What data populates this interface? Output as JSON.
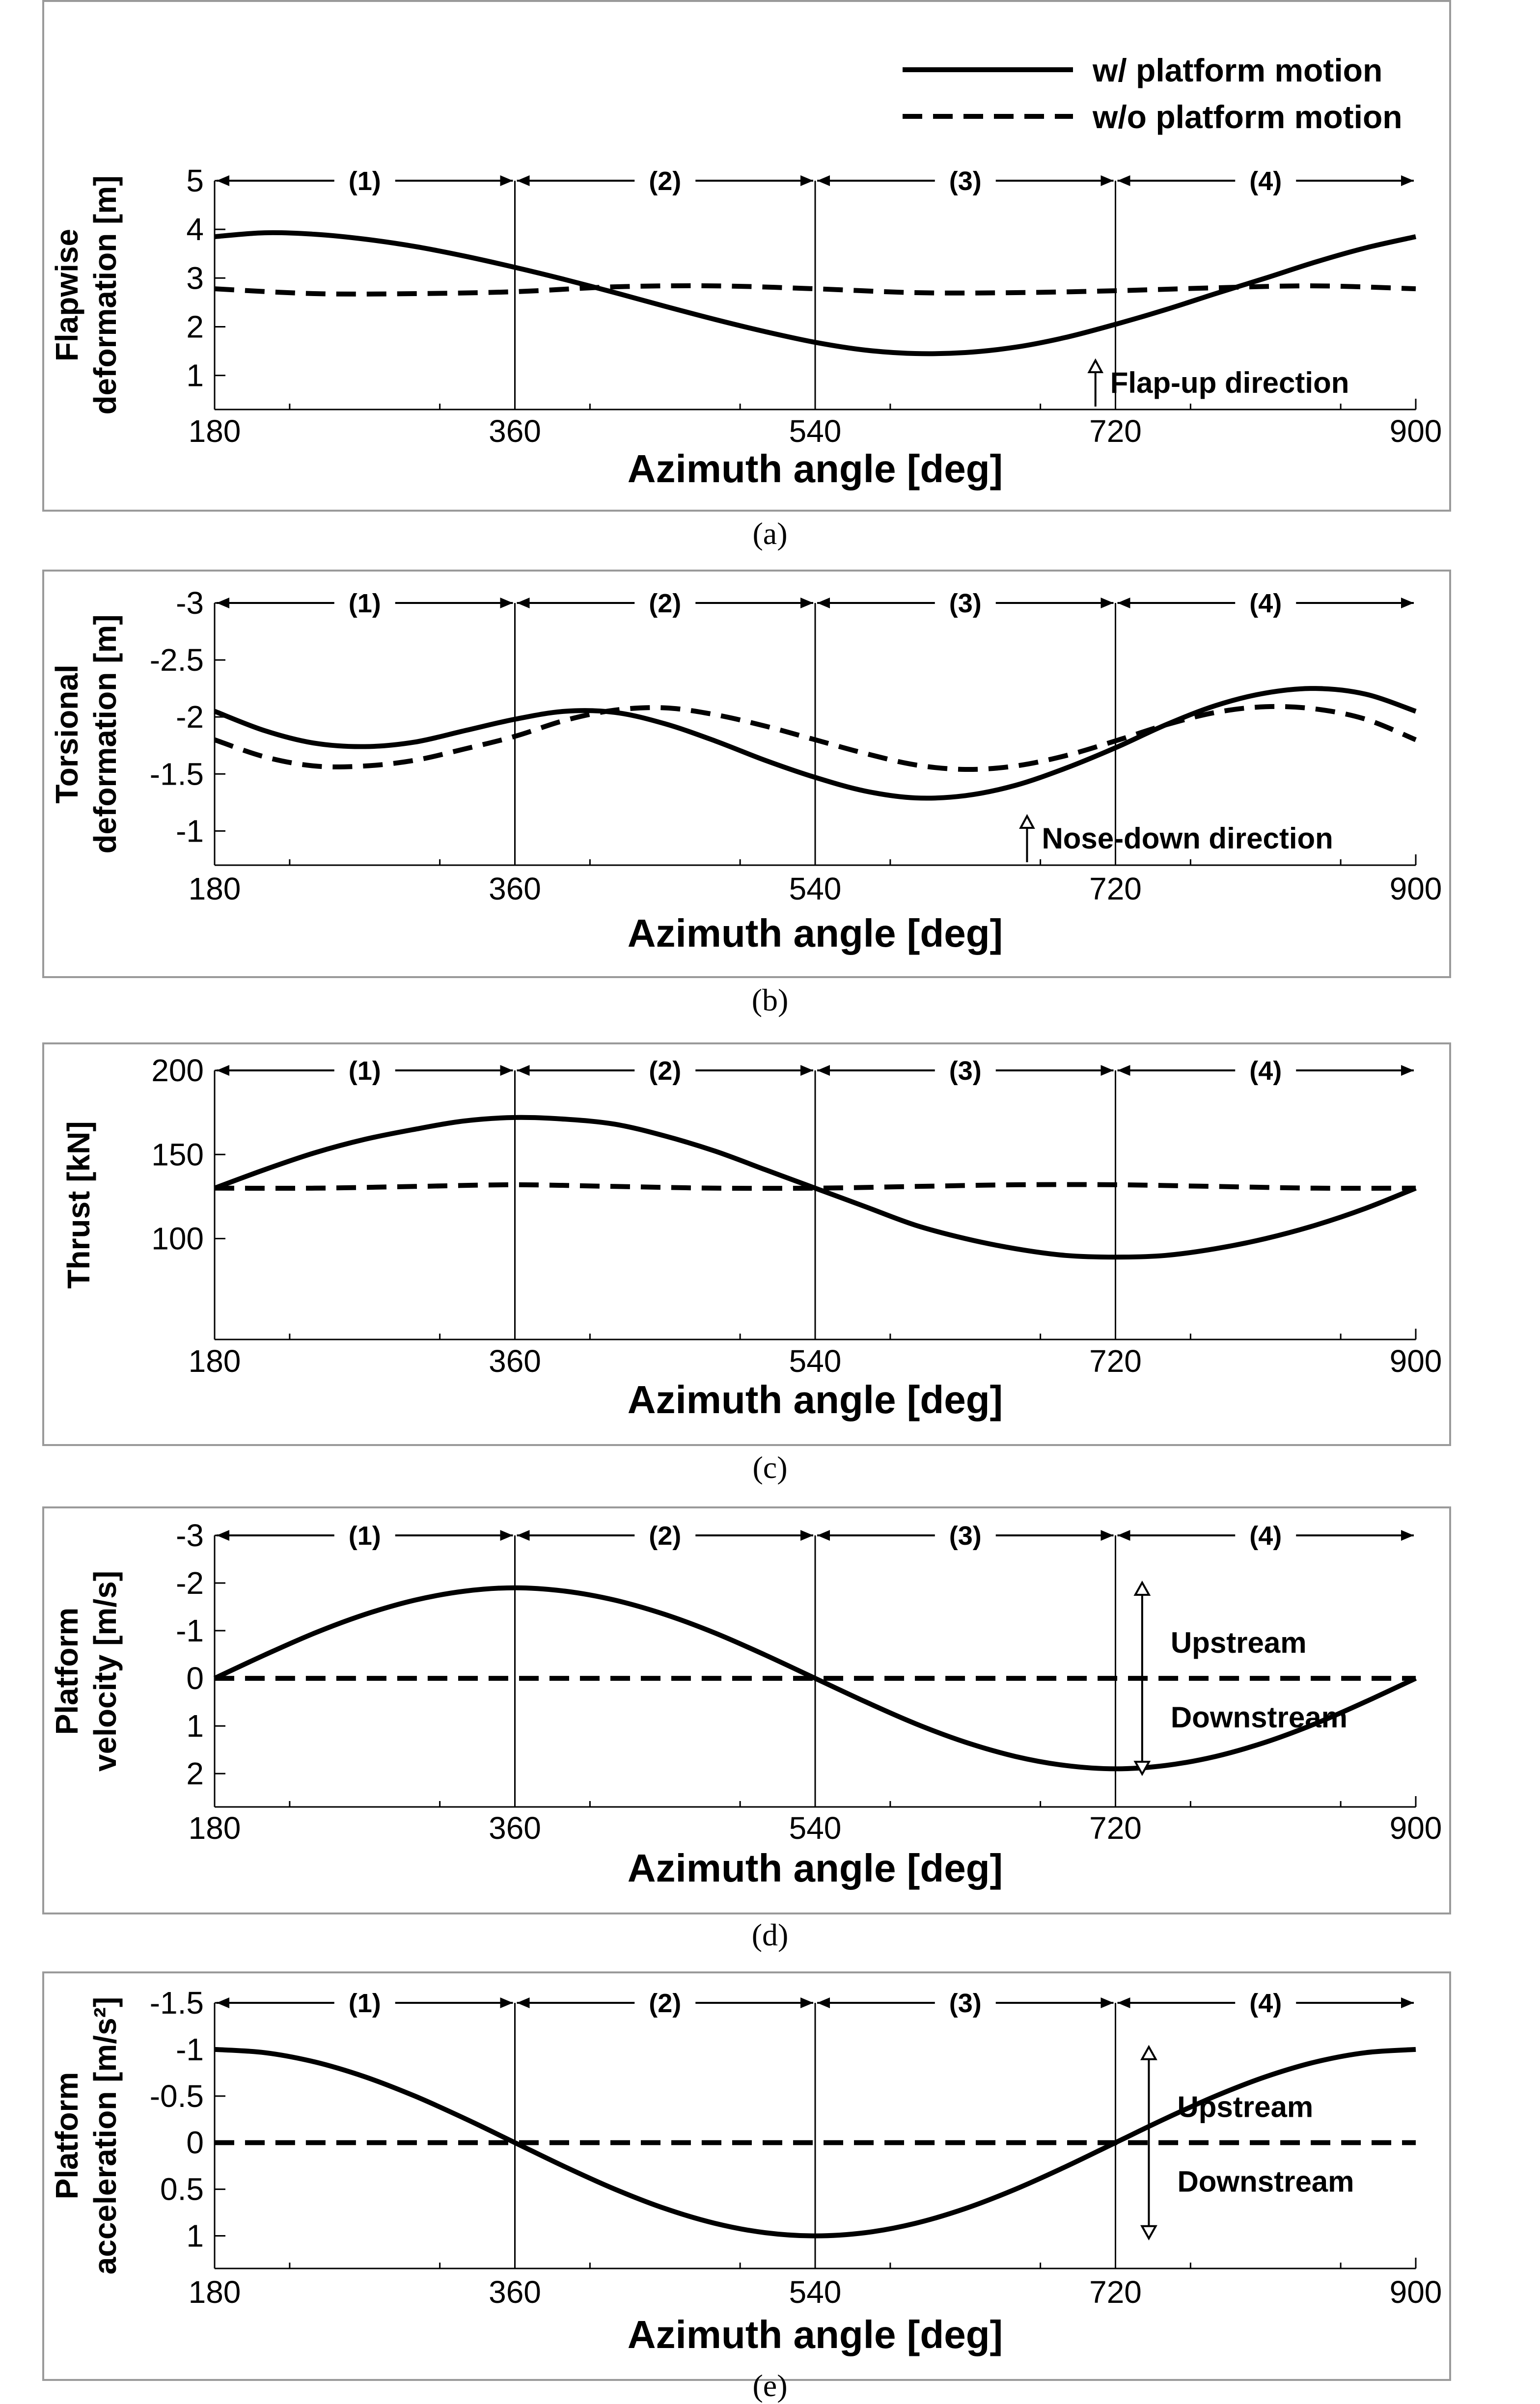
{
  "legend": {
    "solid_label": "w/   platform motion",
    "dashed_label": "w/o platform motion"
  },
  "chart_data": [
    {
      "panel": "a",
      "type": "line",
      "caption": "(a)",
      "xlabel": "Azimuth angle [deg]",
      "ylabel_lines": [
        "Flapwise",
        "deformation [m]"
      ],
      "xlim": [
        180,
        900
      ],
      "xticks": [
        180,
        360,
        540,
        720,
        900
      ],
      "ylim": [
        0.3,
        5
      ],
      "yticks": [
        1,
        2,
        3,
        4,
        5
      ],
      "yticklabels": [
        "1",
        "2",
        "3",
        "4",
        "5"
      ],
      "inverted": false,
      "regions": [
        "(1)",
        "(2)",
        "(3)",
        "(4)"
      ],
      "annotation": {
        "text": "Flap-up direction",
        "x": 708,
        "kind": "up"
      },
      "series": [
        {
          "name": "w/ platform motion",
          "style": "solid",
          "x": [
            180,
            210,
            240,
            270,
            300,
            330,
            360,
            390,
            420,
            450,
            480,
            510,
            540,
            570,
            600,
            630,
            660,
            690,
            720,
            750,
            780,
            810,
            840,
            870,
            900
          ],
          "y": [
            3.85,
            3.93,
            3.9,
            3.8,
            3.65,
            3.45,
            3.22,
            2.97,
            2.7,
            2.42,
            2.15,
            1.9,
            1.68,
            1.52,
            1.45,
            1.47,
            1.58,
            1.78,
            2.05,
            2.35,
            2.68,
            3.0,
            3.33,
            3.62,
            3.85
          ]
        },
        {
          "name": "w/o platform motion",
          "style": "dashed",
          "x": [
            180,
            240,
            300,
            360,
            420,
            480,
            540,
            600,
            660,
            720,
            780,
            840,
            900
          ],
          "y": [
            2.78,
            2.68,
            2.68,
            2.72,
            2.82,
            2.84,
            2.78,
            2.7,
            2.7,
            2.74,
            2.8,
            2.84,
            2.78
          ]
        }
      ]
    },
    {
      "panel": "b",
      "type": "line",
      "caption": "(b)",
      "xlabel": "Azimuth angle [deg]",
      "ylabel_lines": [
        "Torsional",
        "deformation [m]"
      ],
      "xlim": [
        180,
        900
      ],
      "xticks": [
        180,
        360,
        540,
        720,
        900
      ],
      "ylim": [
        -3,
        -0.7
      ],
      "yticks": [
        -3,
        -2.5,
        -2,
        -1.5,
        -1
      ],
      "yticklabels": [
        "-3",
        "-2.5",
        "-2",
        "-1.5",
        "-1"
      ],
      "inverted": true,
      "regions": [
        "(1)",
        "(2)",
        "(3)",
        "(4)"
      ],
      "annotation": {
        "text": "Nose-down direction",
        "x": 667,
        "kind": "up"
      },
      "series": [
        {
          "name": "w/ platform motion",
          "style": "solid",
          "x": [
            180,
            210,
            240,
            270,
            300,
            330,
            360,
            390,
            420,
            450,
            480,
            510,
            540,
            570,
            600,
            630,
            660,
            690,
            720,
            750,
            780,
            810,
            840,
            870,
            900
          ],
          "y": [
            -2.05,
            -1.88,
            -1.77,
            -1.74,
            -1.78,
            -1.88,
            -1.98,
            -2.05,
            -2.04,
            -1.94,
            -1.79,
            -1.62,
            -1.47,
            -1.35,
            -1.29,
            -1.31,
            -1.4,
            -1.55,
            -1.73,
            -1.93,
            -2.1,
            -2.21,
            -2.25,
            -2.2,
            -2.05
          ]
        },
        {
          "name": "w/o platform motion",
          "style": "dashed",
          "x": [
            180,
            210,
            240,
            270,
            300,
            330,
            360,
            390,
            420,
            450,
            480,
            510,
            540,
            570,
            600,
            630,
            660,
            690,
            720,
            750,
            780,
            810,
            840,
            870,
            900
          ],
          "y": [
            -1.8,
            -1.65,
            -1.57,
            -1.57,
            -1.62,
            -1.72,
            -1.83,
            -1.97,
            -2.06,
            -2.08,
            -2.02,
            -1.92,
            -1.8,
            -1.68,
            -1.58,
            -1.54,
            -1.57,
            -1.66,
            -1.79,
            -1.93,
            -2.04,
            -2.09,
            -2.07,
            -1.98,
            -1.8
          ]
        }
      ]
    },
    {
      "panel": "c",
      "type": "line",
      "caption": "(c)",
      "xlabel": "Azimuth angle [deg]",
      "ylabel_lines": [
        "Thrust [kN]"
      ],
      "xlim": [
        180,
        900
      ],
      "xticks": [
        180,
        360,
        540,
        720,
        900
      ],
      "ylim": [
        40,
        200
      ],
      "yticks": [
        100,
        150,
        200
      ],
      "yticklabels": [
        "100",
        "150",
        "200"
      ],
      "inverted": false,
      "regions": [
        "(1)",
        "(2)",
        "(3)",
        "(4)"
      ],
      "series": [
        {
          "name": "w/ platform motion",
          "style": "solid",
          "x": [
            180,
            210,
            240,
            270,
            300,
            330,
            360,
            390,
            420,
            450,
            480,
            510,
            540,
            570,
            600,
            630,
            660,
            690,
            720,
            750,
            780,
            810,
            840,
            870,
            900
          ],
          "y": [
            130,
            141,
            151,
            159,
            165,
            170,
            172,
            171,
            168,
            161,
            152,
            141,
            130,
            119,
            108,
            100,
            94,
            90,
            89,
            90,
            94,
            100,
            108,
            118,
            130
          ]
        },
        {
          "name": "w/o platform motion",
          "style": "dashed",
          "x": [
            180,
            240,
            300,
            360,
            420,
            480,
            540,
            600,
            660,
            720,
            780,
            840,
            900
          ],
          "y": [
            130,
            130,
            131,
            132,
            131,
            130,
            130,
            131,
            132,
            132,
            131,
            130,
            130
          ]
        }
      ]
    },
    {
      "panel": "d",
      "type": "line",
      "caption": "(d)",
      "xlabel": "Azimuth angle [deg]",
      "ylabel_lines": [
        "Platform",
        "velocity [m/s]"
      ],
      "xlim": [
        180,
        900
      ],
      "xticks": [
        180,
        360,
        540,
        720,
        900
      ],
      "ylim": [
        -3,
        2.7
      ],
      "yticks": [
        -3,
        -2,
        -1,
        0,
        1,
        2
      ],
      "yticklabels": [
        "-3",
        "-2",
        "-1",
        "0",
        "1",
        "2"
      ],
      "inverted": true,
      "regions": [
        "(1)",
        "(2)",
        "(3)",
        "(4)"
      ],
      "annotation": {
        "up_text": "Upstream",
        "down_text": "Downstream",
        "x": 736,
        "kind": "updown"
      },
      "series": [
        {
          "name": "w/ platform motion",
          "style": "solid",
          "x": [
            180,
            210,
            240,
            270,
            300,
            330,
            360,
            390,
            420,
            450,
            480,
            510,
            540,
            570,
            600,
            630,
            660,
            690,
            720,
            750,
            780,
            810,
            840,
            870,
            900
          ],
          "y": [
            0,
            -0.49,
            -0.95,
            -1.34,
            -1.64,
            -1.83,
            -1.9,
            -1.83,
            -1.64,
            -1.34,
            -0.95,
            -0.49,
            0,
            0.49,
            0.95,
            1.34,
            1.64,
            1.83,
            1.9,
            1.83,
            1.64,
            1.34,
            0.95,
            0.49,
            0
          ]
        },
        {
          "name": "w/o platform motion",
          "style": "dashed",
          "x": [
            180,
            900
          ],
          "y": [
            0,
            0
          ]
        }
      ]
    },
    {
      "panel": "e",
      "type": "line",
      "caption": "(e)",
      "xlabel": "Azimuth angle [deg]",
      "ylabel_lines": [
        "Platform",
        "acceleration [m/s²]"
      ],
      "xlim": [
        180,
        900
      ],
      "xticks": [
        180,
        360,
        540,
        720,
        900
      ],
      "ylim": [
        -1.5,
        1.35
      ],
      "yticks": [
        -1.5,
        -1,
        -0.5,
        0,
        0.5,
        1
      ],
      "yticklabels": [
        "-1.5",
        "-1",
        "-0.5",
        "0",
        "0.5",
        "1"
      ],
      "inverted": true,
      "regions": [
        "(1)",
        "(2)",
        "(3)",
        "(4)"
      ],
      "annotation": {
        "up_text": "Upstream",
        "down_text": "Downstream",
        "x": 740,
        "kind": "updown"
      },
      "series": [
        {
          "name": "w/ platform motion",
          "style": "solid",
          "x": [
            180,
            210,
            240,
            270,
            300,
            330,
            360,
            390,
            420,
            450,
            480,
            510,
            540,
            570,
            600,
            630,
            660,
            690,
            720,
            750,
            780,
            810,
            840,
            870,
            900
          ],
          "y": [
            -1.0,
            -0.966,
            -0.866,
            -0.707,
            -0.5,
            -0.259,
            0,
            0.259,
            0.5,
            0.707,
            0.866,
            0.966,
            1.0,
            0.966,
            0.866,
            0.707,
            0.5,
            0.259,
            0,
            -0.259,
            -0.5,
            -0.707,
            -0.866,
            -0.966,
            -1.0
          ]
        },
        {
          "name": "w/o platform motion",
          "style": "dashed",
          "x": [
            180,
            900
          ],
          "y": [
            0,
            0
          ]
        }
      ]
    }
  ]
}
